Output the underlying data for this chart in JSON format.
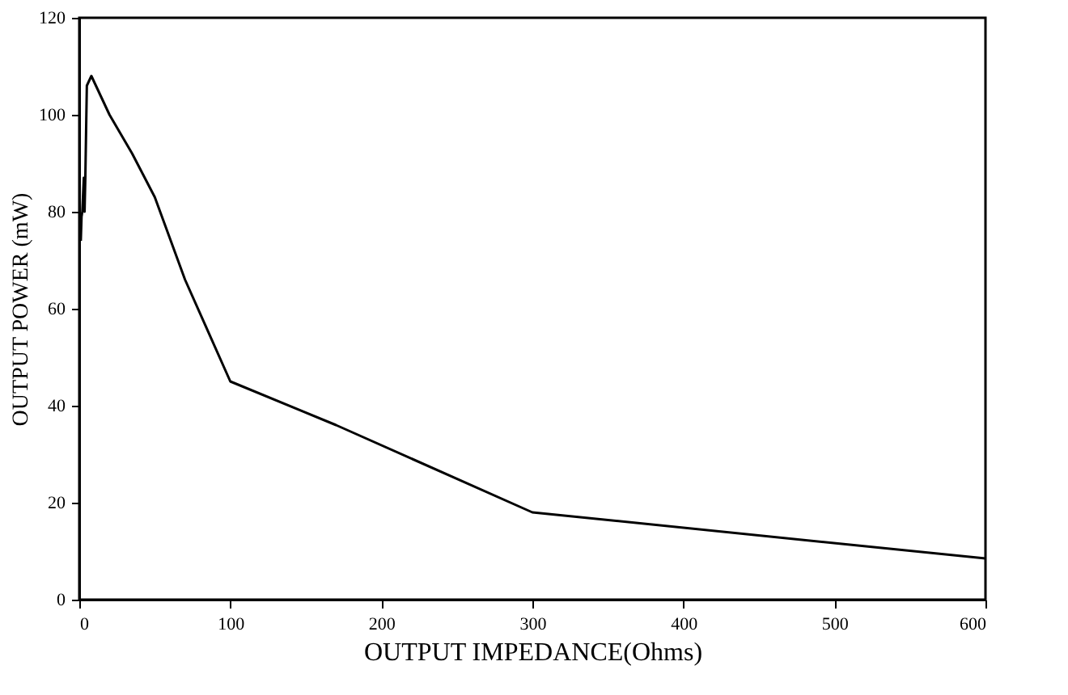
{
  "chart_data": {
    "type": "line",
    "xlabel": "OUTPUT IMPEDANCE(Ohms)",
    "ylabel": "OUTPUT POWER (mW)",
    "x": [
      1,
      1.5,
      2,
      3,
      3.5,
      4,
      5,
      8,
      20,
      35,
      50,
      70,
      100,
      170,
      300,
      600
    ],
    "series": [
      {
        "color": "#000000",
        "values": [
          74,
          79,
          80,
          87,
          80,
          87,
          106,
          108,
          100,
          92,
          83,
          66,
          45,
          36,
          18,
          8.5
        ]
      }
    ],
    "xlim": [
      0,
      600
    ],
    "xticks": [
      0,
      100,
      200,
      300,
      400,
      500,
      600
    ],
    "ylim": [
      0,
      120
    ],
    "yticks": [
      0,
      20,
      40,
      60,
      80,
      100,
      120
    ],
    "grid": false,
    "marker": "none",
    "line_style": "solid"
  }
}
